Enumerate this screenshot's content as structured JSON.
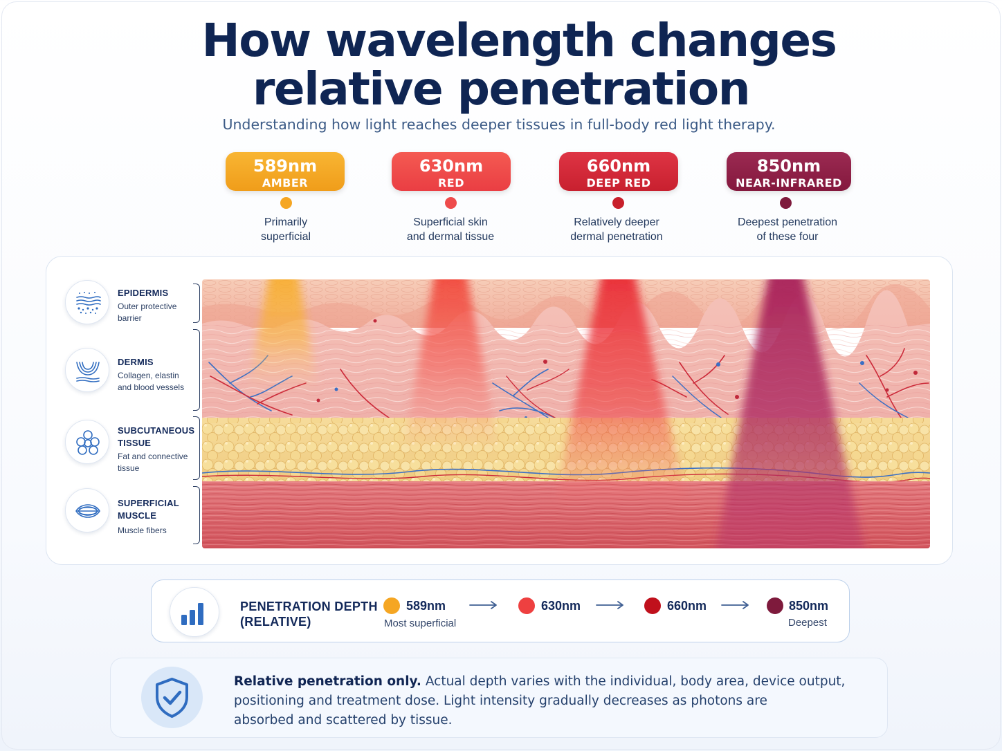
{
  "title": {
    "line1": "How wavelength changes",
    "line2": "relative penetration",
    "subtitle": "Understanding how light reaches deeper tissues in full-body red light therapy."
  },
  "wavelengths": [
    {
      "nm": "589nm",
      "name": "AMBER",
      "desc1": "Primarily",
      "desc2": "superficial",
      "color": "#f5a623",
      "gradient": [
        "#f8b533",
        "#f09d1a"
      ],
      "dot": "#f5a623",
      "penetration_level": 1
    },
    {
      "nm": "630nm",
      "name": "RED",
      "desc1": "Superficial skin",
      "desc2": "and dermal tissue",
      "color": "#ef4b4b",
      "gradient": [
        "#f45a52",
        "#ea3e43"
      ],
      "dot": "#ee4b4b",
      "penetration_level": 2
    },
    {
      "nm": "660nm",
      "name": "DEEP RED",
      "desc1": "Relatively deeper",
      "desc2": "dermal penetration",
      "color": "#d42a3a",
      "gradient": [
        "#de3444",
        "#c8202f"
      ],
      "dot": "#c8202b",
      "penetration_level": 3
    },
    {
      "nm": "850nm",
      "name": "NEAR-INFRARED",
      "desc1": "Deepest penetration",
      "desc2": "of these four",
      "color": "#8e1f45",
      "gradient": [
        "#9b2a52",
        "#84183d"
      ],
      "dot": "#7e1a3c",
      "penetration_level": 4
    }
  ],
  "layers": [
    {
      "name1": "EPIDERMIS",
      "name2": "",
      "desc1": "Outer protective",
      "desc2": "barrier",
      "icon": "skin-layers-icon"
    },
    {
      "name1": "DERMIS",
      "name2": "",
      "desc1": "Collagen, elastin",
      "desc2": "and blood vessels",
      "icon": "collagen-fibers-icon"
    },
    {
      "name1": "SUBCUTANEOUS",
      "name2": "TISSUE",
      "desc1": "Fat and connective",
      "desc2": "tissue",
      "icon": "fat-cells-icon"
    },
    {
      "name1": "SUPERFICIAL",
      "name2": "MUSCLE",
      "desc1": "Muscle fibers",
      "desc2": "",
      "icon": "muscle-fibers-icon"
    }
  ],
  "legend": {
    "title1": "PENETRATION DEPTH",
    "title2": "(RELATIVE)",
    "icon": "bar-chart-icon",
    "items": [
      {
        "label": "589nm",
        "note": "Most superficial",
        "color": "#f5a623"
      },
      {
        "label": "630nm",
        "note": "",
        "color": "#ee4040"
      },
      {
        "label": "660nm",
        "note": "",
        "color": "#c0101c"
      },
      {
        "label": "850nm",
        "note": "Deepest",
        "color": "#7e1a3c"
      }
    ]
  },
  "note": {
    "icon": "shield-check-icon",
    "bold": "Relative penetration only.",
    "line1": " Actual depth varies with the individual, body area, device output,",
    "line2": "positioning and treatment dose. Light intensity gradually decreases as photons are",
    "line3": "absorbed and scattered by tissue."
  },
  "colors": {
    "title": "#0f2553",
    "accent": "#2f6cc0",
    "skin": "#f1b2a6",
    "fat": "#f4d58c",
    "muscle": "#d9626a"
  }
}
